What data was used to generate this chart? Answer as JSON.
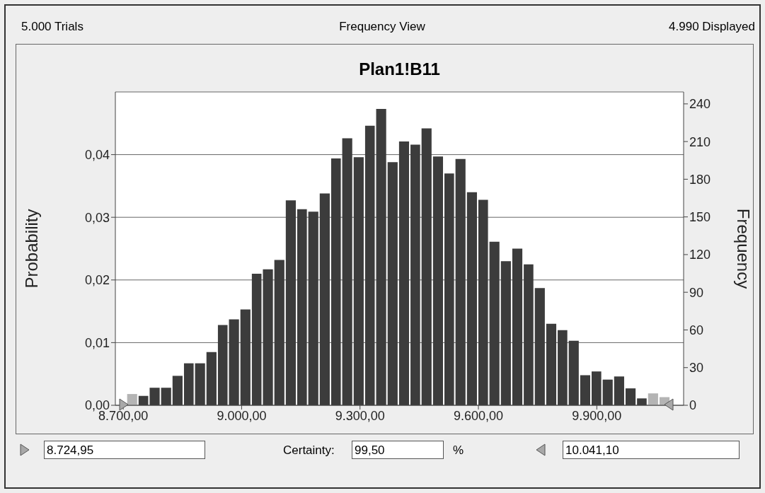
{
  "chart_data": {
    "type": "histogram",
    "title": "Plan1!B11",
    "ylabel": "Probability",
    "y2label": "Frequency",
    "bins": [
      8708,
      8737,
      8765,
      8794,
      8823,
      8852,
      8880,
      8909,
      8938,
      8966,
      8995,
      9024,
      9052,
      9081,
      9110,
      9139,
      9167,
      9196,
      9225,
      9253,
      9282,
      9311,
      9339,
      9368,
      9397,
      9426,
      9454,
      9483,
      9512,
      9540,
      9569,
      9598,
      9626,
      9655,
      9684,
      9713,
      9741,
      9770,
      9799,
      9827,
      9856,
      9885,
      9913,
      9942,
      9971,
      10000,
      10028,
      10057,
      10086
    ],
    "values": [
      0.0018,
      0.0015,
      0.0028,
      0.0028,
      0.0047,
      0.0067,
      0.0067,
      0.0085,
      0.0128,
      0.0137,
      0.0153,
      0.021,
      0.0217,
      0.0232,
      0.0327,
      0.0313,
      0.0309,
      0.0338,
      0.0394,
      0.0426,
      0.0396,
      0.0446,
      0.0473,
      0.0388,
      0.0421,
      0.0416,
      0.0442,
      0.0397,
      0.037,
      0.0393,
      0.034,
      0.0328,
      0.0261,
      0.023,
      0.025,
      0.0225,
      0.0187,
      0.013,
      0.012,
      0.0103,
      0.0048,
      0.0054,
      0.0041,
      0.0046,
      0.0027,
      0.0011,
      0.0019,
      0.0013
    ],
    "colors": [
      "#b4b4b4",
      "#3c3c3c",
      "#3c3c3c",
      "#3c3c3c",
      "#3c3c3c",
      "#3c3c3c",
      "#3c3c3c",
      "#3c3c3c",
      "#3c3c3c",
      "#3c3c3c",
      "#3c3c3c",
      "#3c3c3c",
      "#3c3c3c",
      "#3c3c3c",
      "#3c3c3c",
      "#3c3c3c",
      "#3c3c3c",
      "#3c3c3c",
      "#3c3c3c",
      "#3c3c3c",
      "#3c3c3c",
      "#3c3c3c",
      "#3c3c3c",
      "#3c3c3c",
      "#3c3c3c",
      "#3c3c3c",
      "#3c3c3c",
      "#3c3c3c",
      "#3c3c3c",
      "#3c3c3c",
      "#3c3c3c",
      "#3c3c3c",
      "#3c3c3c",
      "#3c3c3c",
      "#3c3c3c",
      "#3c3c3c",
      "#3c3c3c",
      "#3c3c3c",
      "#3c3c3c",
      "#3c3c3c",
      "#3c3c3c",
      "#3c3c3c",
      "#3c3c3c",
      "#3c3c3c",
      "#3c3c3c",
      "#3c3c3c",
      "#b4b4b4",
      "#b4b4b4"
    ],
    "xlim": [
      8680,
      10120
    ],
    "xticks": [
      {
        "value": 8700,
        "label": "8.700,00"
      },
      {
        "value": 9000,
        "label": "9.000,00"
      },
      {
        "value": 9300,
        "label": "9.300,00"
      },
      {
        "value": 9600,
        "label": "9.600,00"
      },
      {
        "value": 9900,
        "label": "9.900,00"
      }
    ],
    "ylim": [
      0,
      0.05
    ],
    "yticks": [
      {
        "value": 0,
        "label": "0,00"
      },
      {
        "value": 0.01,
        "label": "0,01"
      },
      {
        "value": 0.02,
        "label": "0,02"
      },
      {
        "value": 0.03,
        "label": "0,03"
      },
      {
        "value": 0.04,
        "label": "0,04"
      }
    ],
    "y2lim": [
      0,
      249.5
    ],
    "y2ticks": [
      0,
      30,
      60,
      90,
      120,
      150,
      180,
      210,
      240
    ],
    "grid": "y",
    "annotations": [
      "5.000 Trials",
      "Frequency View",
      "4.990 Displayed",
      "8.724,95",
      "Certainty:",
      "99,50",
      "%",
      "10.041,10"
    ]
  }
}
